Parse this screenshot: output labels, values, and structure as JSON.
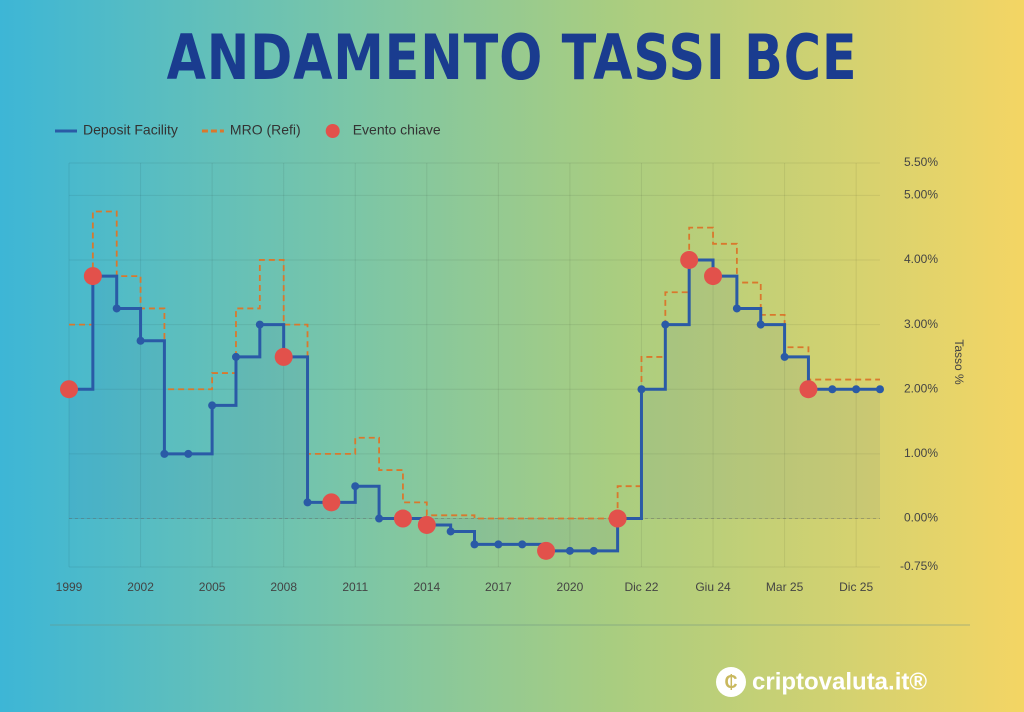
{
  "chart_data": {
    "type": "line",
    "title": "ANDAMENTO TASSI BCE",
    "categories": [
      "1999",
      null,
      null,
      "2002",
      null,
      null,
      "2005",
      null,
      null,
      "2008",
      null,
      null,
      "2011",
      null,
      null,
      "2014",
      null,
      null,
      "2017",
      null,
      null,
      "2020",
      null,
      null,
      "Dic 22",
      null,
      null,
      "Giu 24",
      null,
      null,
      "Mar 25",
      null,
      null,
      "Dic 25",
      null
    ],
    "series": [
      {
        "name": "Deposit Facility",
        "color": "#2a5aa6",
        "values": [
          2.0,
          3.75,
          3.25,
          2.75,
          1.0,
          1.0,
          1.75,
          2.5,
          3.0,
          2.5,
          0.25,
          0.25,
          0.5,
          0.0,
          0.0,
          -0.1,
          -0.2,
          -0.4,
          -0.4,
          -0.4,
          -0.5,
          -0.5,
          -0.5,
          0.0,
          2.0,
          3.0,
          4.0,
          3.75,
          3.25,
          3.0,
          2.5,
          2.0,
          2.0,
          2.0,
          2.0
        ]
      },
      {
        "name": "MRO (Refi)",
        "color": "#d9782d",
        "values": [
          3.0,
          4.75,
          3.75,
          3.25,
          2.0,
          2.0,
          2.25,
          3.25,
          4.0,
          3.0,
          1.0,
          1.0,
          1.25,
          0.75,
          0.25,
          0.05,
          0.05,
          0.0,
          0.0,
          0.0,
          0.0,
          0.0,
          0.0,
          0.5,
          2.5,
          3.5,
          4.5,
          4.25,
          3.65,
          3.15,
          2.65,
          2.15,
          2.15,
          2.15,
          2.15
        ]
      },
      {
        "name": "Evento chiave",
        "color": "#e2514b",
        "values": [
          2.0,
          3.75,
          null,
          null,
          null,
          null,
          null,
          null,
          null,
          2.5,
          null,
          0.25,
          null,
          null,
          0.0,
          -0.1,
          null,
          null,
          null,
          null,
          -0.5,
          null,
          null,
          0.0,
          null,
          null,
          4.0,
          3.75,
          null,
          null,
          null,
          2.0,
          null,
          null,
          null
        ]
      }
    ],
    "ylabel": "Tasso %",
    "ylim": [
      -0.75,
      5.5
    ],
    "yticks": [
      {
        "value": -0.75,
        "label": "-0.75%"
      },
      {
        "value": 0,
        "label": "0.00%"
      },
      {
        "value": 1,
        "label": "1.00%"
      },
      {
        "value": 2,
        "label": "2.00%"
      },
      {
        "value": 3,
        "label": "3.00%"
      },
      {
        "value": 4,
        "label": "4.00%"
      },
      {
        "value": 5,
        "label": "5.00%"
      },
      {
        "value": 5.5,
        "label": "5.50%"
      }
    ],
    "grid": true,
    "legend": "top-left"
  },
  "brand": "criptovaluta.it®"
}
